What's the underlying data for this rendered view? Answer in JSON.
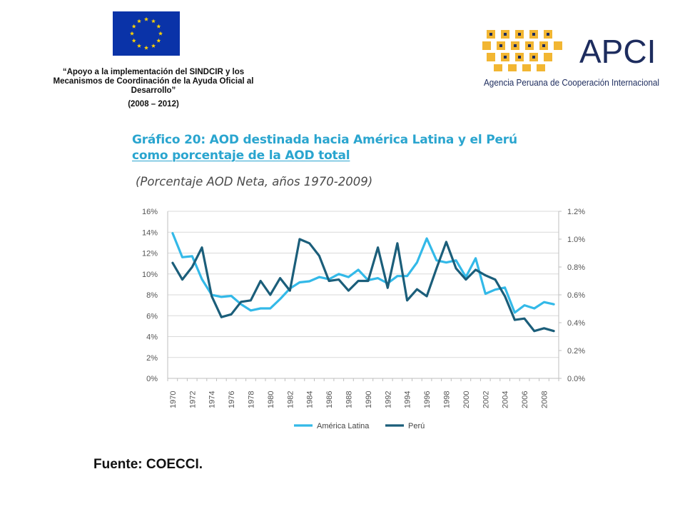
{
  "header": {
    "project_line1": "“Apoyo  a la implementación del SINDCIR y los",
    "project_line2": "Mecanismos de Coordinación de la Ayuda Oficial al",
    "project_line3": "Desarrollo”",
    "project_period": "(2008 – 2012)",
    "apci_name": "APCI",
    "apci_fullname": "Agencia Peruana de Cooperación Internacional"
  },
  "colors": {
    "america_latina": "#33b9e8",
    "peru": "#1b5e7a",
    "title": "#2aa5cf",
    "apci_yellow": "#f2b632",
    "apci_navy": "#1d2c5e",
    "eu_blue": "#0a33a8",
    "eu_gold": "#ffd200"
  },
  "chart_data": {
    "type": "line",
    "title_line1": "Gráfico 20: AOD destinada hacia América Latina y el Perú",
    "title_line2": "como porcentaje de la AOD total",
    "subtitle": "(Porcentaje AOD Neta, años 1970-2009)",
    "x": [
      1970,
      1971,
      1972,
      1973,
      1974,
      1975,
      1976,
      1977,
      1978,
      1979,
      1980,
      1981,
      1982,
      1983,
      1984,
      1985,
      1986,
      1987,
      1988,
      1989,
      1990,
      1991,
      1992,
      1993,
      1994,
      1995,
      1996,
      1997,
      1998,
      1999,
      2000,
      2001,
      2002,
      2003,
      2004,
      2005,
      2006,
      2007,
      2008,
      2009
    ],
    "x_tick_labels": [
      "1970",
      "1972",
      "1974",
      "1976",
      "1978",
      "1980",
      "1982",
      "1984",
      "1986",
      "1988",
      "1990",
      "1992",
      "1994",
      "1996",
      "1998",
      "2000",
      "2002",
      "2004",
      "2006",
      "2008"
    ],
    "left_axis": {
      "label": "",
      "ylim": [
        0,
        16
      ],
      "ticks": [
        "0%",
        "2%",
        "4%",
        "6%",
        "8%",
        "10%",
        "12%",
        "14%",
        "16%"
      ]
    },
    "right_axis": {
      "label": "",
      "ylim": [
        0,
        1.2
      ],
      "ticks": [
        "0.0%",
        "0.2%",
        "0.4%",
        "0.6%",
        "0.8%",
        "1.0%",
        "1.2%"
      ]
    },
    "grid": "horizontal",
    "legend_position": "bottom-center",
    "series": [
      {
        "name": "América Latina",
        "axis": "left",
        "values": [
          13.9,
          11.6,
          11.7,
          9.5,
          8.0,
          7.8,
          7.9,
          7.1,
          6.5,
          6.7,
          6.7,
          7.6,
          8.6,
          9.2,
          9.3,
          9.7,
          9.5,
          10.0,
          9.7,
          10.4,
          9.4,
          9.6,
          9.1,
          9.8,
          9.8,
          11.1,
          13.4,
          11.3,
          11.1,
          11.3,
          9.7,
          11.5,
          8.1,
          8.5,
          8.7,
          6.3,
          7.0,
          6.7,
          7.3,
          7.1
        ]
      },
      {
        "name": "Perú",
        "axis": "right",
        "values": [
          0.83,
          0.71,
          0.8,
          0.94,
          0.59,
          0.44,
          0.46,
          0.55,
          0.56,
          0.7,
          0.6,
          0.72,
          0.63,
          1.0,
          0.97,
          0.88,
          0.7,
          0.71,
          0.63,
          0.7,
          0.7,
          0.94,
          0.65,
          0.97,
          0.56,
          0.64,
          0.59,
          0.79,
          0.98,
          0.79,
          0.71,
          0.78,
          0.74,
          0.71,
          0.59,
          0.42,
          0.43,
          0.34,
          0.36,
          0.34
        ]
      }
    ]
  },
  "footer": {
    "source": "Fuente: COECCI."
  }
}
